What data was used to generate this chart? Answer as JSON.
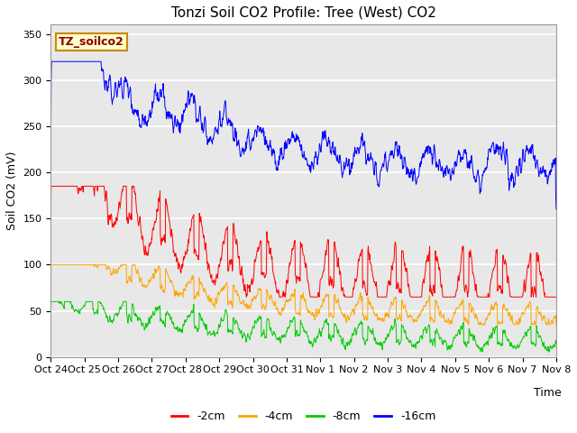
{
  "title": "Tonzi Soil CO2 Profile: Tree (West) CO2",
  "ylabel": "Soil CO2 (mV)",
  "xlabel": "Time",
  "legend_label": "TZ_soilco2",
  "x_tick_labels": [
    "Oct 24",
    "Oct 25",
    "Oct 26",
    "Oct 27",
    "Oct 28",
    "Oct 29",
    "Oct 30",
    "Oct 31",
    "Nov 1",
    "Nov 2",
    "Nov 3",
    "Nov 4",
    "Nov 5",
    "Nov 6",
    "Nov 7",
    "Nov 8"
  ],
  "ylim": [
    0,
    360
  ],
  "yticks": [
    0,
    50,
    100,
    150,
    200,
    250,
    300,
    350
  ],
  "series": [
    {
      "label": "-2cm",
      "color": "#ff0000"
    },
    {
      "label": "-4cm",
      "color": "#ffa500"
    },
    {
      "label": "-8cm",
      "color": "#00cc00"
    },
    {
      "label": "-16cm",
      "color": "#0000ff"
    }
  ],
  "axes_bg_color": "#e8e8e8",
  "title_fontsize": 11,
  "tick_fontsize": 8,
  "legend_fontsize": 9,
  "figsize": [
    6.4,
    4.8
  ],
  "dpi": 100
}
